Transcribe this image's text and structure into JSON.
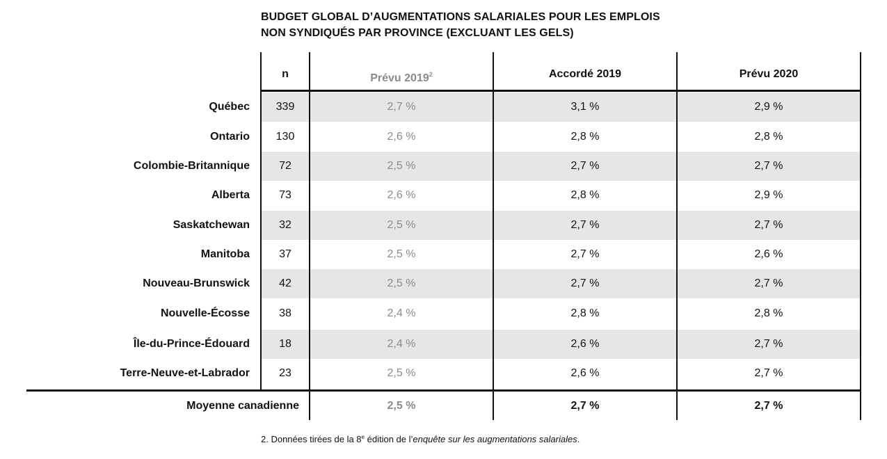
{
  "title": {
    "line1": "BUDGET GLOBAL D’AUGMENTATIONS SALARIALES POUR LES EMPLOIS",
    "line2": "NON SYNDIQUÉS PAR PROVINCE (EXCLUANT LES GELS)"
  },
  "headers": {
    "n": "n",
    "col1": "Prévu 2019",
    "col1_note": "2",
    "col2": "Accordé 2019",
    "col3": "Prévu 2020"
  },
  "rows": [
    {
      "province": "Québec",
      "n": "339",
      "prevu_2019": "2,7 %",
      "accorde_2019": "3,1 %",
      "prevu_2020": "2,9 %"
    },
    {
      "province": "Ontario",
      "n": "130",
      "prevu_2019": "2,6 %",
      "accorde_2019": "2,8 %",
      "prevu_2020": "2,8 %"
    },
    {
      "province": "Colombie-Britannique",
      "n": "72",
      "prevu_2019": "2,5 %",
      "accorde_2019": "2,7 %",
      "prevu_2020": "2,7 %"
    },
    {
      "province": "Alberta",
      "n": "73",
      "prevu_2019": "2,6 %",
      "accorde_2019": "2,8 %",
      "prevu_2020": "2,9 %"
    },
    {
      "province": "Saskatchewan",
      "n": "32",
      "prevu_2019": "2,5 %",
      "accorde_2019": "2,7 %",
      "prevu_2020": "2,7 %"
    },
    {
      "province": "Manitoba",
      "n": "37",
      "prevu_2019": "2,5 %",
      "accorde_2019": "2,7 %",
      "prevu_2020": "2,6 %"
    },
    {
      "province": "Nouveau-Brunswick",
      "n": "42",
      "prevu_2019": "2,5 %",
      "accorde_2019": "2,7 %",
      "prevu_2020": "2,7 %"
    },
    {
      "province": "Nouvelle-Écosse",
      "n": "38",
      "prevu_2019": "2,4 %",
      "accorde_2019": "2,8 %",
      "prevu_2020": "2,8 %"
    },
    {
      "province": "Île-du-Prince-Édouard",
      "n": "18",
      "prevu_2019": "2,4 %",
      "accorde_2019": "2,6 %",
      "prevu_2020": "2,7 %"
    },
    {
      "province": "Terre-Neuve-et-Labrador",
      "n": "23",
      "prevu_2019": "2,5 %",
      "accorde_2019": "2,6 %",
      "prevu_2020": "2,7 %"
    }
  ],
  "average": {
    "label": "Moyenne canadienne",
    "prevu_2019": "2,5 %",
    "accorde_2019": "2,7 %",
    "prevu_2020": "2,7 %"
  },
  "footnote": {
    "prefix": "2. Données tirées de la 8",
    "sup": "e",
    "middle": " édition de l’",
    "italic": "enquête sur les augmentations salariales",
    "suffix": "."
  },
  "colors": {
    "row_shade": "#e6e6e6",
    "muted_text": "#8a8a8a",
    "rule": "#111111"
  }
}
